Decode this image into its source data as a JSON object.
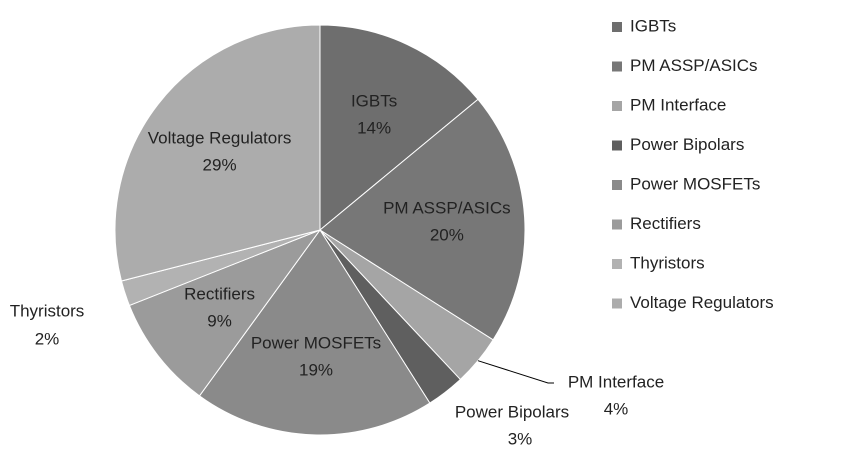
{
  "chart_data": {
    "type": "pie",
    "categories": [
      "IGBTs",
      "PM ASSP/ASICs",
      "PM Interface",
      "Power Bipolars",
      "Power MOSFETs",
      "Rectifiers",
      "Thyristors",
      "Voltage Regulators"
    ],
    "values": [
      14,
      20,
      4,
      3,
      19,
      9,
      2,
      29
    ],
    "value_labels": [
      "14%",
      "20%",
      "4%",
      "3%",
      "19%",
      "9%",
      "2%",
      "29%"
    ],
    "colors": [
      "#6e6e6e",
      "#777777",
      "#a5a5a5",
      "#5f5f5f",
      "#8a8a8a",
      "#9b9b9b",
      "#b2b2b2",
      "#acacac"
    ],
    "legend": "right"
  }
}
